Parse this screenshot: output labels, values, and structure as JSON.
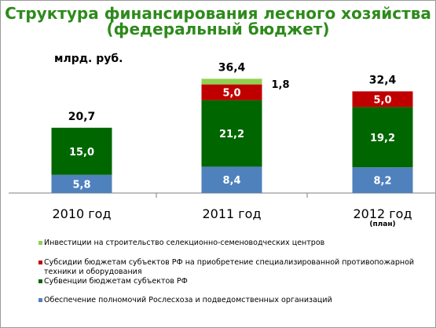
{
  "title_line1": "Структура финансирования лесного хозяйства",
  "title_line2": "(федеральный бюджет)",
  "unit_label": "млрд. руб.",
  "chart_data": {
    "type": "bar",
    "stacked": true,
    "categories": [
      "2010 год",
      "2011 год",
      "2012 год"
    ],
    "category_note": {
      "index": 2,
      "text": "(план)"
    },
    "totals": [
      20.7,
      36.4,
      32.4
    ],
    "total_labels": [
      "20,7",
      "36,4",
      "32,4"
    ],
    "ylim": [
      0,
      40
    ],
    "grid": false,
    "legend_position": "bottom",
    "series": [
      {
        "name": "Обеспечение полномочий Рослесхоза и подведомственных организаций",
        "values": [
          5.8,
          8.4,
          8.2
        ],
        "labels": [
          "5,8",
          "8,4",
          "8,2"
        ],
        "color": "#4f81bd"
      },
      {
        "name": "Субвенции бюджетам субъектов РФ",
        "values": [
          15.0,
          21.2,
          19.2
        ],
        "labels": [
          "15,0",
          "21,2",
          "19,2"
        ],
        "color": "#006600"
      },
      {
        "name": "Субсидии бюджетам субъектов РФ на приобретение специализированной противопожарной техники и оборудования",
        "values": [
          0,
          5.0,
          5.0
        ],
        "labels": [
          "",
          "5,0",
          "5,0"
        ],
        "color": "#c00000"
      },
      {
        "name": "Инвестиции на строительство селекционно-семеноводческих центров",
        "values": [
          0,
          1.8,
          0
        ],
        "labels": [
          "",
          "1,8",
          ""
        ],
        "color": "#92d050"
      }
    ]
  },
  "legend": [
    {
      "text": "Инвестиции на строительство селекционно-семеноводческих центров",
      "color": "#92d050"
    },
    {
      "text": "Субсидии бюджетам субъектов РФ на приобретение специализированной противопожарной техники и оборудования",
      "color": "#c00000"
    },
    {
      "text": "Субвенции бюджетам субъектов РФ",
      "color": "#006600"
    },
    {
      "text": "Обеспечение полномочий Рослесхоза и подведомственных организаций",
      "color": "#4f81bd"
    }
  ]
}
